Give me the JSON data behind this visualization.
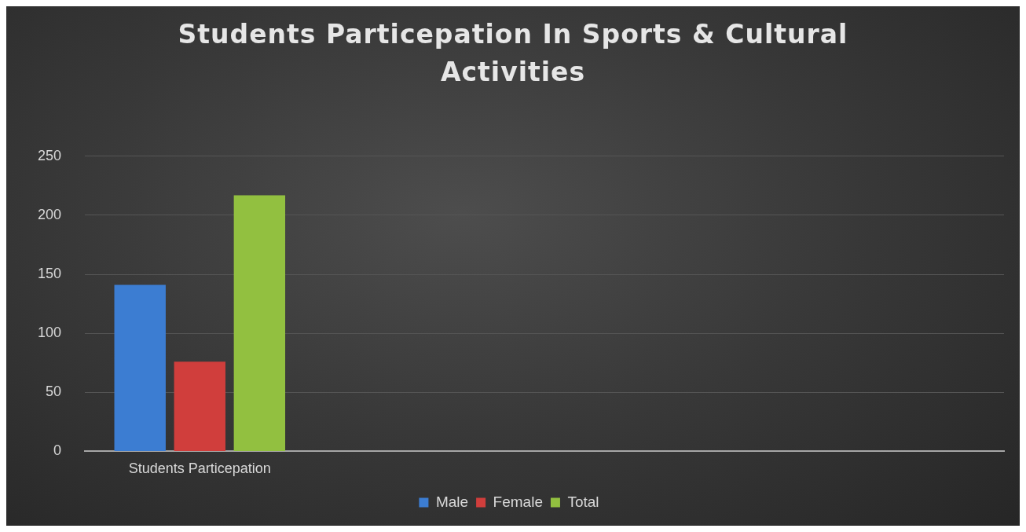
{
  "chart_data": {
    "type": "bar",
    "title": "Students Particepation In Sports & Cultural Activities",
    "categories": [
      "Students Particepation",
      null,
      null,
      null
    ],
    "series": [
      {
        "name": "Male",
        "color": "#3c7dd2",
        "values": [
          141,
          null,
          null,
          null
        ]
      },
      {
        "name": "Female",
        "color": "#d03e3c",
        "values": [
          76,
          null,
          null,
          null
        ]
      },
      {
        "name": "Total",
        "color": "#92c040",
        "values": [
          217,
          null,
          null,
          null
        ]
      }
    ],
    "ylim": [
      0,
      250
    ],
    "yticks": [
      0,
      50,
      100,
      150,
      200,
      250
    ],
    "grid": "y",
    "legend": "bottom"
  }
}
